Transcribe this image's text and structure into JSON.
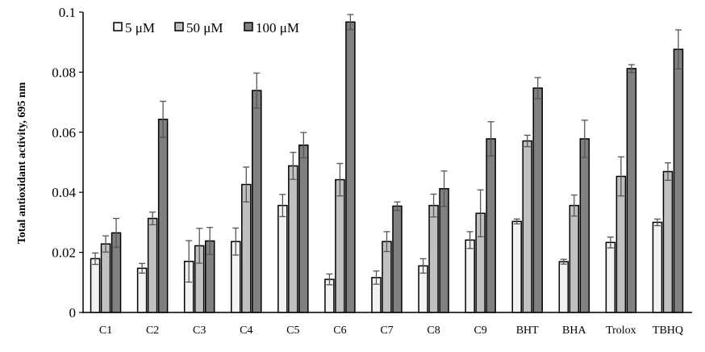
{
  "chart_data": {
    "type": "bar",
    "title": "",
    "xlabel": "",
    "ylabel": "Total antioxidant activity, 695 nm",
    "ylim": [
      0,
      0.1
    ],
    "yticks": [
      "0",
      "0.02",
      "0.04",
      "0.06",
      "0.08",
      "0.1"
    ],
    "ytick_values": [
      0,
      0.02,
      0.04,
      0.06,
      0.08,
      0.1
    ],
    "grid": false,
    "legend_position": "top-left",
    "categories": [
      "C1",
      "C2",
      "C3",
      "C4",
      "C5",
      "C6",
      "C7",
      "C8",
      "C9",
      "BHT",
      "BHA",
      "Trolox",
      "TBHQ"
    ],
    "series": [
      {
        "name": "5 μM",
        "color": "#f2f2f2",
        "values": [
          0.0179,
          0.0147,
          0.017,
          0.0236,
          0.0356,
          0.011,
          0.0116,
          0.0155,
          0.0241,
          0.0303,
          0.0169,
          0.0233,
          0.03
        ],
        "errors": [
          0.0019,
          0.0016,
          0.0069,
          0.0045,
          0.0037,
          0.0018,
          0.0022,
          0.0024,
          0.0028,
          0.0008,
          0.0008,
          0.0018,
          0.0011
        ]
      },
      {
        "name": "50 μM",
        "color": "#c0c0c0",
        "values": [
          0.0228,
          0.0313,
          0.0222,
          0.0426,
          0.0488,
          0.0442,
          0.0236,
          0.0356,
          0.033,
          0.0571,
          0.0356,
          0.0453,
          0.0469
        ],
        "errors": [
          0.0027,
          0.0021,
          0.0058,
          0.0058,
          0.0045,
          0.0054,
          0.0033,
          0.0038,
          0.0078,
          0.0019,
          0.0035,
          0.0065,
          0.0029
        ]
      },
      {
        "name": "100 μM",
        "color": "#808080",
        "values": [
          0.0265,
          0.0643,
          0.0238,
          0.0739,
          0.0557,
          0.0967,
          0.0354,
          0.0412,
          0.0578,
          0.0747,
          0.0578,
          0.0812,
          0.0876
        ],
        "errors": [
          0.0048,
          0.006,
          0.0045,
          0.0058,
          0.0042,
          0.0025,
          0.0014,
          0.0059,
          0.0057,
          0.0035,
          0.0062,
          0.0013,
          0.0065
        ]
      }
    ]
  }
}
